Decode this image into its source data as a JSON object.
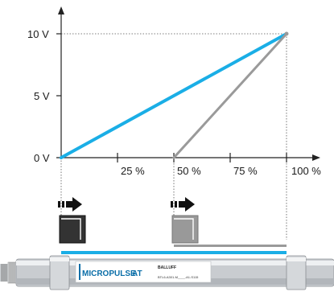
{
  "chart_data": {
    "type": "line",
    "x_ticks": [
      "25 %",
      "50 %",
      "75 %",
      "100 %"
    ],
    "y_ticks": [
      "0 V",
      "5 V",
      "10 V"
    ],
    "xlim": [
      0,
      100
    ],
    "ylim": [
      0,
      10
    ],
    "series": [
      {
        "color": "#1aaee6",
        "x": [
          0,
          100
        ],
        "y": [
          0,
          10
        ]
      },
      {
        "color": "#9a9a9a",
        "x": [
          50,
          100
        ],
        "y": [
          0,
          10
        ]
      }
    ],
    "reference_lines": "dotted at 10 V and 100 %",
    "grid": false
  },
  "transducer": {
    "brand": "MICROPULSE",
    "brand_suffix": "AT",
    "maker": "BALLUFF",
    "part_number": "BTL6-A301-M____-A1-S115"
  },
  "magnets": [
    {
      "color": "#333333"
    },
    {
      "color": "#999999"
    }
  ]
}
